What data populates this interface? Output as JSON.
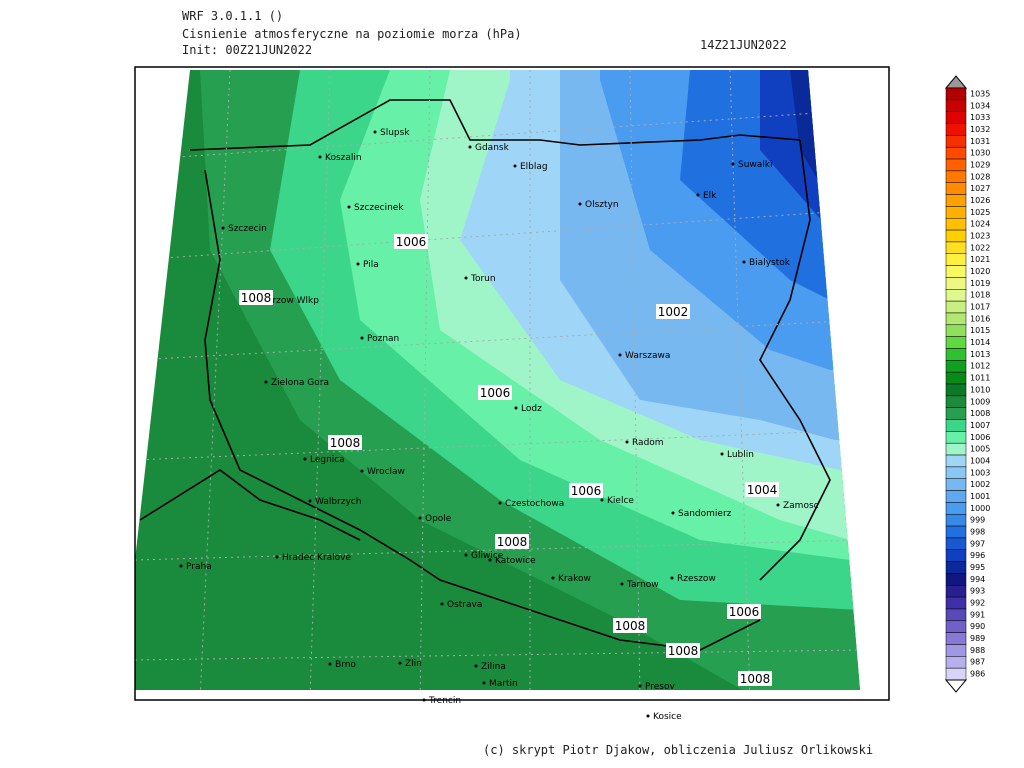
{
  "header": {
    "lines": [
      "WRF 3.0.1.1 ()",
      "Cisnienie atmosferyczne na poziomie morza (hPa)",
      "Init: 00Z21JUN2022"
    ],
    "valid_time": "14Z21JUN2022"
  },
  "cities": [
    "Slupsk",
    "Koszalin",
    "Gdansk",
    "Elblag",
    "Olsztyn",
    "Suwalki",
    "Elk",
    "Szczecinek",
    "Szczecin",
    "Bialystok",
    "Pila",
    "Torun",
    "Gorzow Wlkp",
    "Poznan",
    "Warszawa",
    "Zielona Gora",
    "Lodz",
    "Radom",
    "Lublin",
    "Legnica",
    "Wroclaw",
    "Czestochowa",
    "Kielce",
    "Sandomierz",
    "Zamosc",
    "Walbrzych",
    "Opole",
    "Praha",
    "Hradec Kralove",
    "Gliwice",
    "Katowice",
    "Krakow",
    "Tarnow",
    "Rzeszow",
    "Ostrava",
    "Brno",
    "Zlin",
    "Zilina",
    "Martin",
    "Presov",
    "Trencin",
    "Kosice"
  ],
  "contour_labels": [
    1006,
    1008,
    1002,
    1006,
    1008,
    1006,
    1004,
    1008,
    1006,
    1008,
    1008,
    1008
  ],
  "colorbar": {
    "levels": [
      {
        "label": 1035,
        "color": "#b00000"
      },
      {
        "label": 1034,
        "color": "#c80000"
      },
      {
        "label": 1033,
        "color": "#e00000"
      },
      {
        "label": 1032,
        "color": "#f01000"
      },
      {
        "label": 1031,
        "color": "#f83000"
      },
      {
        "label": 1030,
        "color": "#ff4a00"
      },
      {
        "label": 1029,
        "color": "#ff6000"
      },
      {
        "label": 1028,
        "color": "#ff7800"
      },
      {
        "label": 1027,
        "color": "#ff8c00"
      },
      {
        "label": 1026,
        "color": "#ffa000"
      },
      {
        "label": 1025,
        "color": "#ffb000"
      },
      {
        "label": 1024,
        "color": "#ffc000"
      },
      {
        "label": 1023,
        "color": "#ffd000"
      },
      {
        "label": 1022,
        "color": "#ffe020"
      },
      {
        "label": 1021,
        "color": "#fff040"
      },
      {
        "label": 1020,
        "color": "#f8f860"
      },
      {
        "label": 1019,
        "color": "#eef880"
      },
      {
        "label": 1018,
        "color": "#e0f890"
      },
      {
        "label": 1017,
        "color": "#c8f080"
      },
      {
        "label": 1016,
        "color": "#b0e870"
      },
      {
        "label": 1015,
        "color": "#90e060"
      },
      {
        "label": 1014,
        "color": "#60d840"
      },
      {
        "label": 1013,
        "color": "#30c030"
      },
      {
        "label": 1012,
        "color": "#10a020"
      },
      {
        "label": 1011,
        "color": "#088a18"
      },
      {
        "label": 1010,
        "color": "#0a7a28"
      },
      {
        "label": 1009,
        "color": "#1a8a3c"
      },
      {
        "label": 1008,
        "color": "#26a050"
      },
      {
        "label": 1007,
        "color": "#3cd68a"
      },
      {
        "label": 1006,
        "color": "#66f0a8"
      },
      {
        "label": 1005,
        "color": "#9ff5c8"
      },
      {
        "label": 1004,
        "color": "#9fd6f7"
      },
      {
        "label": 1003,
        "color": "#88c8f4"
      },
      {
        "label": 1002,
        "color": "#78b8f0"
      },
      {
        "label": 1001,
        "color": "#60a8f0"
      },
      {
        "label": 1000,
        "color": "#4a9cf0"
      },
      {
        "label": 999,
        "color": "#3888e8"
      },
      {
        "label": 998,
        "color": "#2070e0"
      },
      {
        "label": 997,
        "color": "#1858d0"
      },
      {
        "label": 996,
        "color": "#1040c0"
      },
      {
        "label": 995,
        "color": "#0a2a9a"
      },
      {
        "label": 994,
        "color": "#101880"
      },
      {
        "label": 993,
        "color": "#282090"
      },
      {
        "label": 992,
        "color": "#4030a8"
      },
      {
        "label": 991,
        "color": "#5848b8"
      },
      {
        "label": 990,
        "color": "#7060c8"
      },
      {
        "label": 989,
        "color": "#8878d8"
      },
      {
        "label": 988,
        "color": "#a098e4"
      },
      {
        "label": 987,
        "color": "#b8b0ee"
      },
      {
        "label": 986,
        "color": "#d8d4f8"
      }
    ]
  },
  "footer": "(c) skrypt Piotr Djakow, obliczenia Juliusz Orlikowski"
}
